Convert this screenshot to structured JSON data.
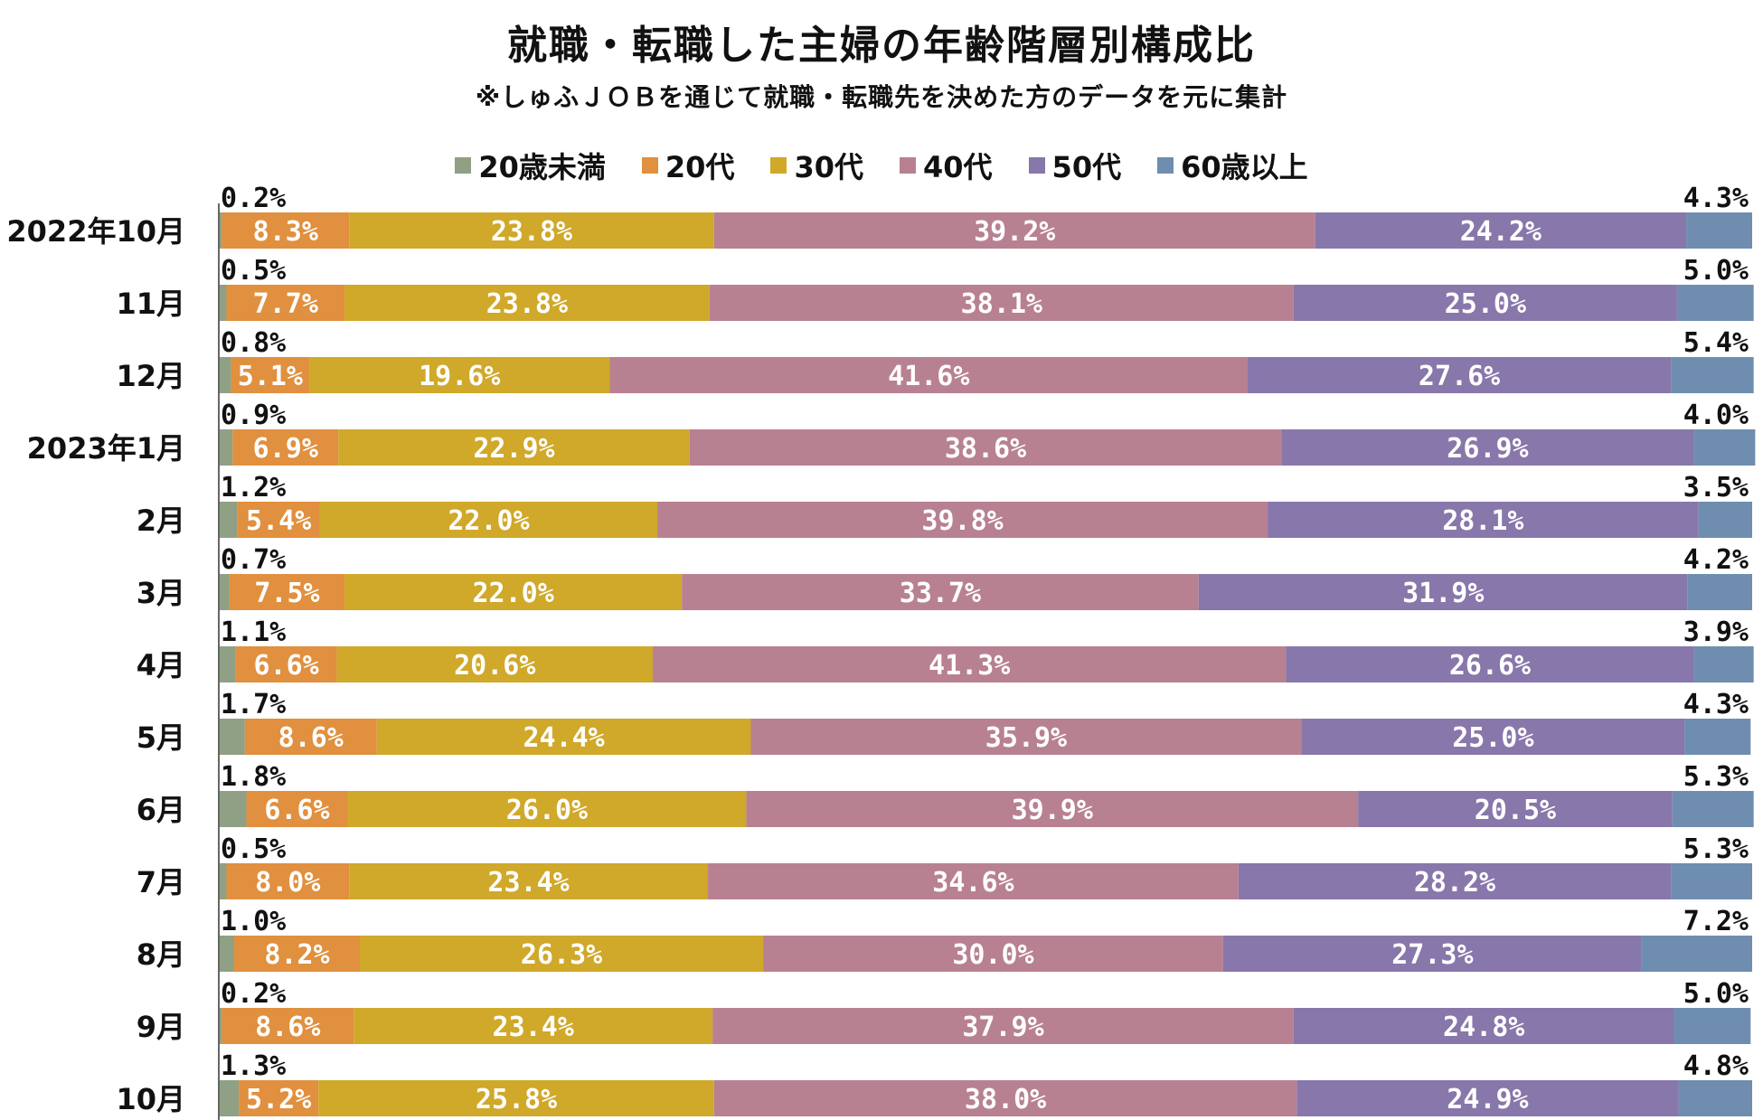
{
  "title": "就職・転職した主婦の年齢階層別構成比",
  "subtitle": "※しゅふＪＯＢを通じて就職・転職先を決めた方のデータを元に集計",
  "colors": {
    "under20": "#8fa084",
    "20s": "#e0903e",
    "30s": "#d0a82a",
    "40s": "#b88191",
    "50s": "#8877aa",
    "60plus": "#6f8eaf"
  },
  "chart_data": {
    "type": "bar",
    "orientation": "horizontal",
    "stacked": true,
    "normalized": true,
    "xlim": [
      0,
      100
    ],
    "legend": "top",
    "grid": false,
    "categories": [
      "2022年10月",
      "11月",
      "12月",
      "2023年1月",
      "2月",
      "3月",
      "4月",
      "5月",
      "6月",
      "7月",
      "8月",
      "9月",
      "10月"
    ],
    "series": [
      {
        "name": "20歳未満",
        "values": [
          0.2,
          0.5,
          0.8,
          0.9,
          1.2,
          0.7,
          1.1,
          1.7,
          1.8,
          0.5,
          1.0,
          0.2,
          1.3
        ],
        "labels": [
          "0.2%",
          "0.5%",
          "0.8%",
          "0.9%",
          "1.2%",
          "0.7%",
          "1.1%",
          "1.7%",
          "1.8%",
          "0.5%",
          "1.0%",
          "0.2%",
          "1.3%"
        ]
      },
      {
        "name": "20代",
        "values": [
          8.3,
          7.7,
          5.1,
          6.9,
          5.4,
          7.5,
          6.6,
          8.6,
          6.6,
          8.0,
          8.2,
          8.6,
          5.2
        ],
        "labels": [
          "8.3%",
          "7.7%",
          "5.1%",
          "6.9%",
          "5.4%",
          "7.5%",
          "6.6%",
          "8.6%",
          "6.6%",
          "8.0%",
          "8.2%",
          "8.6%",
          "5.2%"
        ]
      },
      {
        "name": "30代",
        "values": [
          23.8,
          23.8,
          19.6,
          22.9,
          22.0,
          22.0,
          20.6,
          24.4,
          26.0,
          23.4,
          26.3,
          23.4,
          25.8
        ],
        "labels": [
          "23.8%",
          "23.8%",
          "19.6%",
          "22.9%",
          "22.0%",
          "22.0%",
          "20.6%",
          "24.4%",
          "26.0%",
          "23.4%",
          "26.3%",
          "23.4%",
          "25.8%"
        ]
      },
      {
        "name": "40代",
        "values": [
          39.2,
          38.1,
          41.6,
          38.6,
          39.8,
          33.7,
          41.3,
          35.9,
          39.9,
          34.6,
          30.0,
          37.9,
          38.0
        ],
        "labels": [
          "39.2%",
          "38.1%",
          "41.6%",
          "38.6%",
          "39.8%",
          "33.7%",
          "41.3%",
          "35.9%",
          "39.9%",
          "34.6%",
          "30.0%",
          "37.9%",
          "38.0%"
        ]
      },
      {
        "name": "50代",
        "values": [
          24.2,
          25.0,
          27.6,
          26.9,
          28.1,
          31.9,
          26.6,
          25.0,
          20.5,
          28.2,
          27.3,
          24.8,
          24.9
        ],
        "labels": [
          "24.2%",
          "25.0%",
          "27.6%",
          "26.9%",
          "28.1%",
          "31.9%",
          "26.6%",
          "25.0%",
          "20.5%",
          "28.2%",
          "27.3%",
          "24.8%",
          "24.9%"
        ]
      },
      {
        "name": "60歳以上",
        "values": [
          4.3,
          5.0,
          5.4,
          4.0,
          3.5,
          4.2,
          3.9,
          4.3,
          5.3,
          5.3,
          7.2,
          5.0,
          4.8
        ],
        "labels": [
          "4.3%",
          "5.0%",
          "5.4%",
          "4.0%",
          "3.5%",
          "4.2%",
          "3.9%",
          "4.3%",
          "5.3%",
          "5.3%",
          "7.2%",
          "5.0%",
          "4.8%"
        ]
      }
    ]
  }
}
